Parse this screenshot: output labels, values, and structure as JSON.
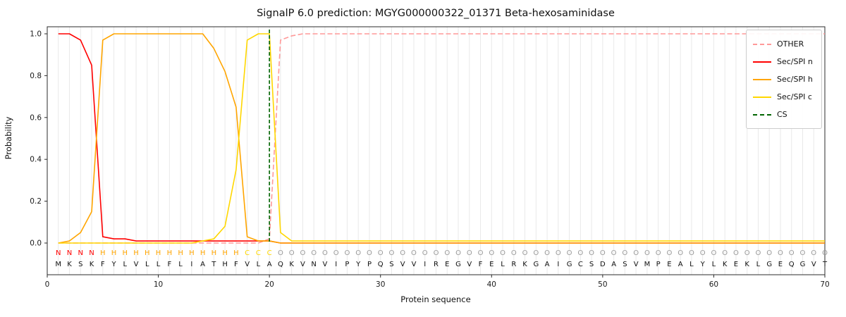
{
  "title": "SignalP 6.0 prediction: MGYG000000322_01371 Beta-hexosaminidase",
  "xlabel": "Protein sequence",
  "ylabel": "Probability",
  "chart_data": {
    "type": "line",
    "title": "SignalP 6.0 prediction: MGYG000000322_01371 Beta-hexosaminidase",
    "xlabel": "Protein sequence",
    "ylabel": "Probability",
    "xlim": [
      0,
      70
    ],
    "ylim": [
      -0.15,
      1.03
    ],
    "x_ticks": [
      0,
      10,
      20,
      30,
      40,
      50,
      60,
      70
    ],
    "y_ticks": [
      0.0,
      0.2,
      0.4,
      0.6,
      0.8,
      1.0
    ],
    "grid": "vertical-only",
    "legend_position": "upper-right",
    "cs_position": 20,
    "sequence": "MKSKFYLVLLFLIATHFVLAQKVNVIPYPQSVVIREGVFELRKGAIGCSDASVMPEALYLKEKLGEQGVT",
    "region_labels": "NNNNHHHHHHHHHHHHHCCCOOOOOOOOOOOOOOOOOOOOOOOOOOOOOOOOOOOOOOOOOOOOOOOOOO",
    "series": [
      {
        "id": "other",
        "name": "OTHER",
        "color": "#ff9999",
        "dash": true,
        "values": [
          0,
          0,
          0,
          0,
          0,
          0,
          0,
          0,
          0,
          0,
          0,
          0,
          0,
          0,
          0,
          0,
          0,
          0,
          0,
          0.02,
          0.97,
          0.99,
          1.0,
          1.0,
          1.0,
          1.0,
          1.0,
          1.0,
          1.0,
          1.0,
          1.0,
          1.0,
          1.0,
          1.0,
          1.0,
          1.0,
          1.0,
          1.0,
          1.0,
          1.0,
          1.0,
          1.0,
          1.0,
          1.0,
          1.0,
          1.0,
          1.0,
          1.0,
          1.0,
          1.0,
          1.0,
          1.0,
          1.0,
          1.0,
          1.0,
          1.0,
          1.0,
          1.0,
          1.0,
          1.0,
          1.0,
          1.0,
          1.0,
          1.0,
          1.0,
          1.0,
          1.0,
          1.0,
          1.0,
          1.0
        ]
      },
      {
        "id": "n",
        "name": "Sec/SPI n",
        "color": "#ff0000",
        "dash": false,
        "values": [
          1.0,
          1.0,
          0.97,
          0.85,
          0.03,
          0.02,
          0.02,
          0.01,
          0.01,
          0.01,
          0.01,
          0.01,
          0.01,
          0.01,
          0.01,
          0.01,
          0.01,
          0.01,
          0.01,
          0.01,
          0,
          0,
          0,
          0,
          0,
          0,
          0,
          0,
          0,
          0,
          0,
          0,
          0,
          0,
          0,
          0,
          0,
          0,
          0,
          0,
          0,
          0,
          0,
          0,
          0,
          0,
          0,
          0,
          0,
          0,
          0,
          0,
          0,
          0,
          0,
          0,
          0,
          0,
          0,
          0,
          0,
          0,
          0,
          0,
          0,
          0,
          0,
          0,
          0,
          0
        ]
      },
      {
        "id": "h",
        "name": "Sec/SPI h",
        "color": "#ffa500",
        "dash": false,
        "values": [
          0,
          0.01,
          0.05,
          0.15,
          0.97,
          1.0,
          1.0,
          1.0,
          1.0,
          1.0,
          1.0,
          1.0,
          1.0,
          1.0,
          0.93,
          0.82,
          0.65,
          0.03,
          0.01,
          0.01,
          0,
          0,
          0,
          0,
          0,
          0,
          0,
          0,
          0,
          0,
          0,
          0,
          0,
          0,
          0,
          0,
          0,
          0,
          0,
          0,
          0,
          0,
          0,
          0,
          0,
          0,
          0,
          0,
          0,
          0,
          0,
          0,
          0,
          0,
          0,
          0,
          0,
          0,
          0,
          0,
          0,
          0,
          0,
          0,
          0,
          0,
          0,
          0,
          0,
          0
        ]
      },
      {
        "id": "c",
        "name": "Sec/SPI c",
        "color": "#ffd700",
        "dash": false,
        "values": [
          0,
          0,
          0,
          0,
          0,
          0,
          0,
          0,
          0,
          0,
          0,
          0,
          0,
          0.01,
          0.02,
          0.08,
          0.35,
          0.97,
          1.0,
          1.0,
          0.05,
          0.01,
          0.01,
          0.01,
          0.01,
          0.01,
          0.01,
          0.01,
          0.01,
          0.01,
          0.01,
          0.01,
          0.01,
          0.01,
          0.01,
          0.01,
          0.01,
          0.01,
          0.01,
          0.01,
          0.01,
          0.01,
          0.01,
          0.01,
          0.01,
          0.01,
          0.01,
          0.01,
          0.01,
          0.01,
          0.01,
          0.01,
          0.01,
          0.01,
          0.01,
          0.01,
          0.01,
          0.01,
          0.01,
          0.01,
          0.01,
          0.01,
          0.01,
          0.01,
          0.01,
          0.01,
          0.01,
          0.01,
          0.01,
          0.01
        ]
      }
    ]
  },
  "legend": {
    "entries": [
      {
        "label": "OTHER",
        "color": "#ff9999",
        "dash": true
      },
      {
        "label": "Sec/SPI n",
        "color": "#ff0000",
        "dash": false
      },
      {
        "label": "Sec/SPI h",
        "color": "#ffa500",
        "dash": false
      },
      {
        "label": "Sec/SPI c",
        "color": "#ffd700",
        "dash": false
      },
      {
        "label": "CS",
        "color": "#006400",
        "dash": true
      }
    ]
  },
  "colors": {
    "grid": "#e9e9e9",
    "axis": "#2b2b2b",
    "cs": "#006400",
    "residue_text": "#111111",
    "regions": {
      "N": "#ff0000",
      "H": "#ffa500",
      "C": "#ffd700",
      "O": "#9a9a9a"
    }
  }
}
